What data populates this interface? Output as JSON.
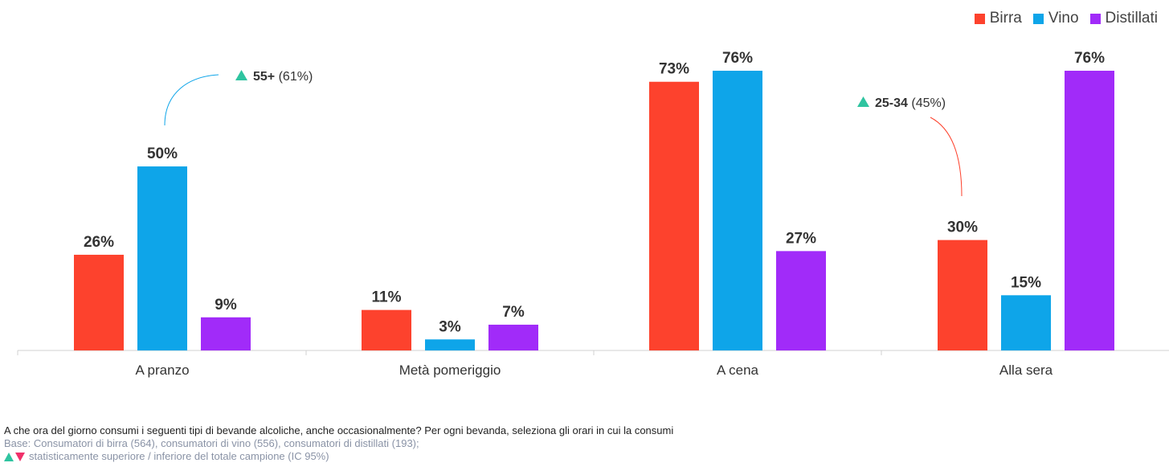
{
  "chart_data": {
    "type": "bar",
    "categories": [
      "A pranzo",
      "Metà pomeriggio",
      "A cena",
      "Alla sera"
    ],
    "series": [
      {
        "name": "Birra",
        "color": "#fd422d",
        "values": [
          26,
          11,
          73,
          30
        ],
        "labels": [
          "26%",
          "11%",
          "73%",
          "30%"
        ]
      },
      {
        "name": "Vino",
        "color": "#0ea5e9",
        "values": [
          50,
          3,
          76,
          15
        ],
        "labels": [
          "50%",
          "3%",
          "76%",
          "15%"
        ]
      },
      {
        "name": "Distillati",
        "color": "#a12bf9",
        "values": [
          9,
          7,
          27,
          76
        ],
        "labels": [
          "9%",
          "7%",
          "27%",
          "76%"
        ]
      }
    ],
    "ylim": [
      0,
      80
    ],
    "grid": false,
    "legend_position": "top-right",
    "annotations": [
      {
        "category_index": 0,
        "series_index": 1,
        "group": "55+",
        "value": "(61%)",
        "color": "#0ea5e9"
      },
      {
        "category_index": 3,
        "series_index": 0,
        "group": "25-34",
        "value": "(45%)",
        "color": "#fd422d"
      }
    ]
  },
  "legend": [
    {
      "label": "Birra",
      "color": "#fd422d"
    },
    {
      "label": "Vino",
      "color": "#0ea5e9"
    },
    {
      "label": "Distillati",
      "color": "#a12bf9"
    }
  ],
  "footer": {
    "question": "A che ora del giorno consumi i seguenti tipi di bevande alcoliche, anche occasionalmente? Per ogni bevanda, seleziona gli orari in cui la consumi",
    "base": "Base: Consumatori di birra (564), consumatori di vino (556), consumatori di distillati (193);",
    "significance": "statisticamente superiore / inferiore del totale campione (IC 95%)"
  }
}
